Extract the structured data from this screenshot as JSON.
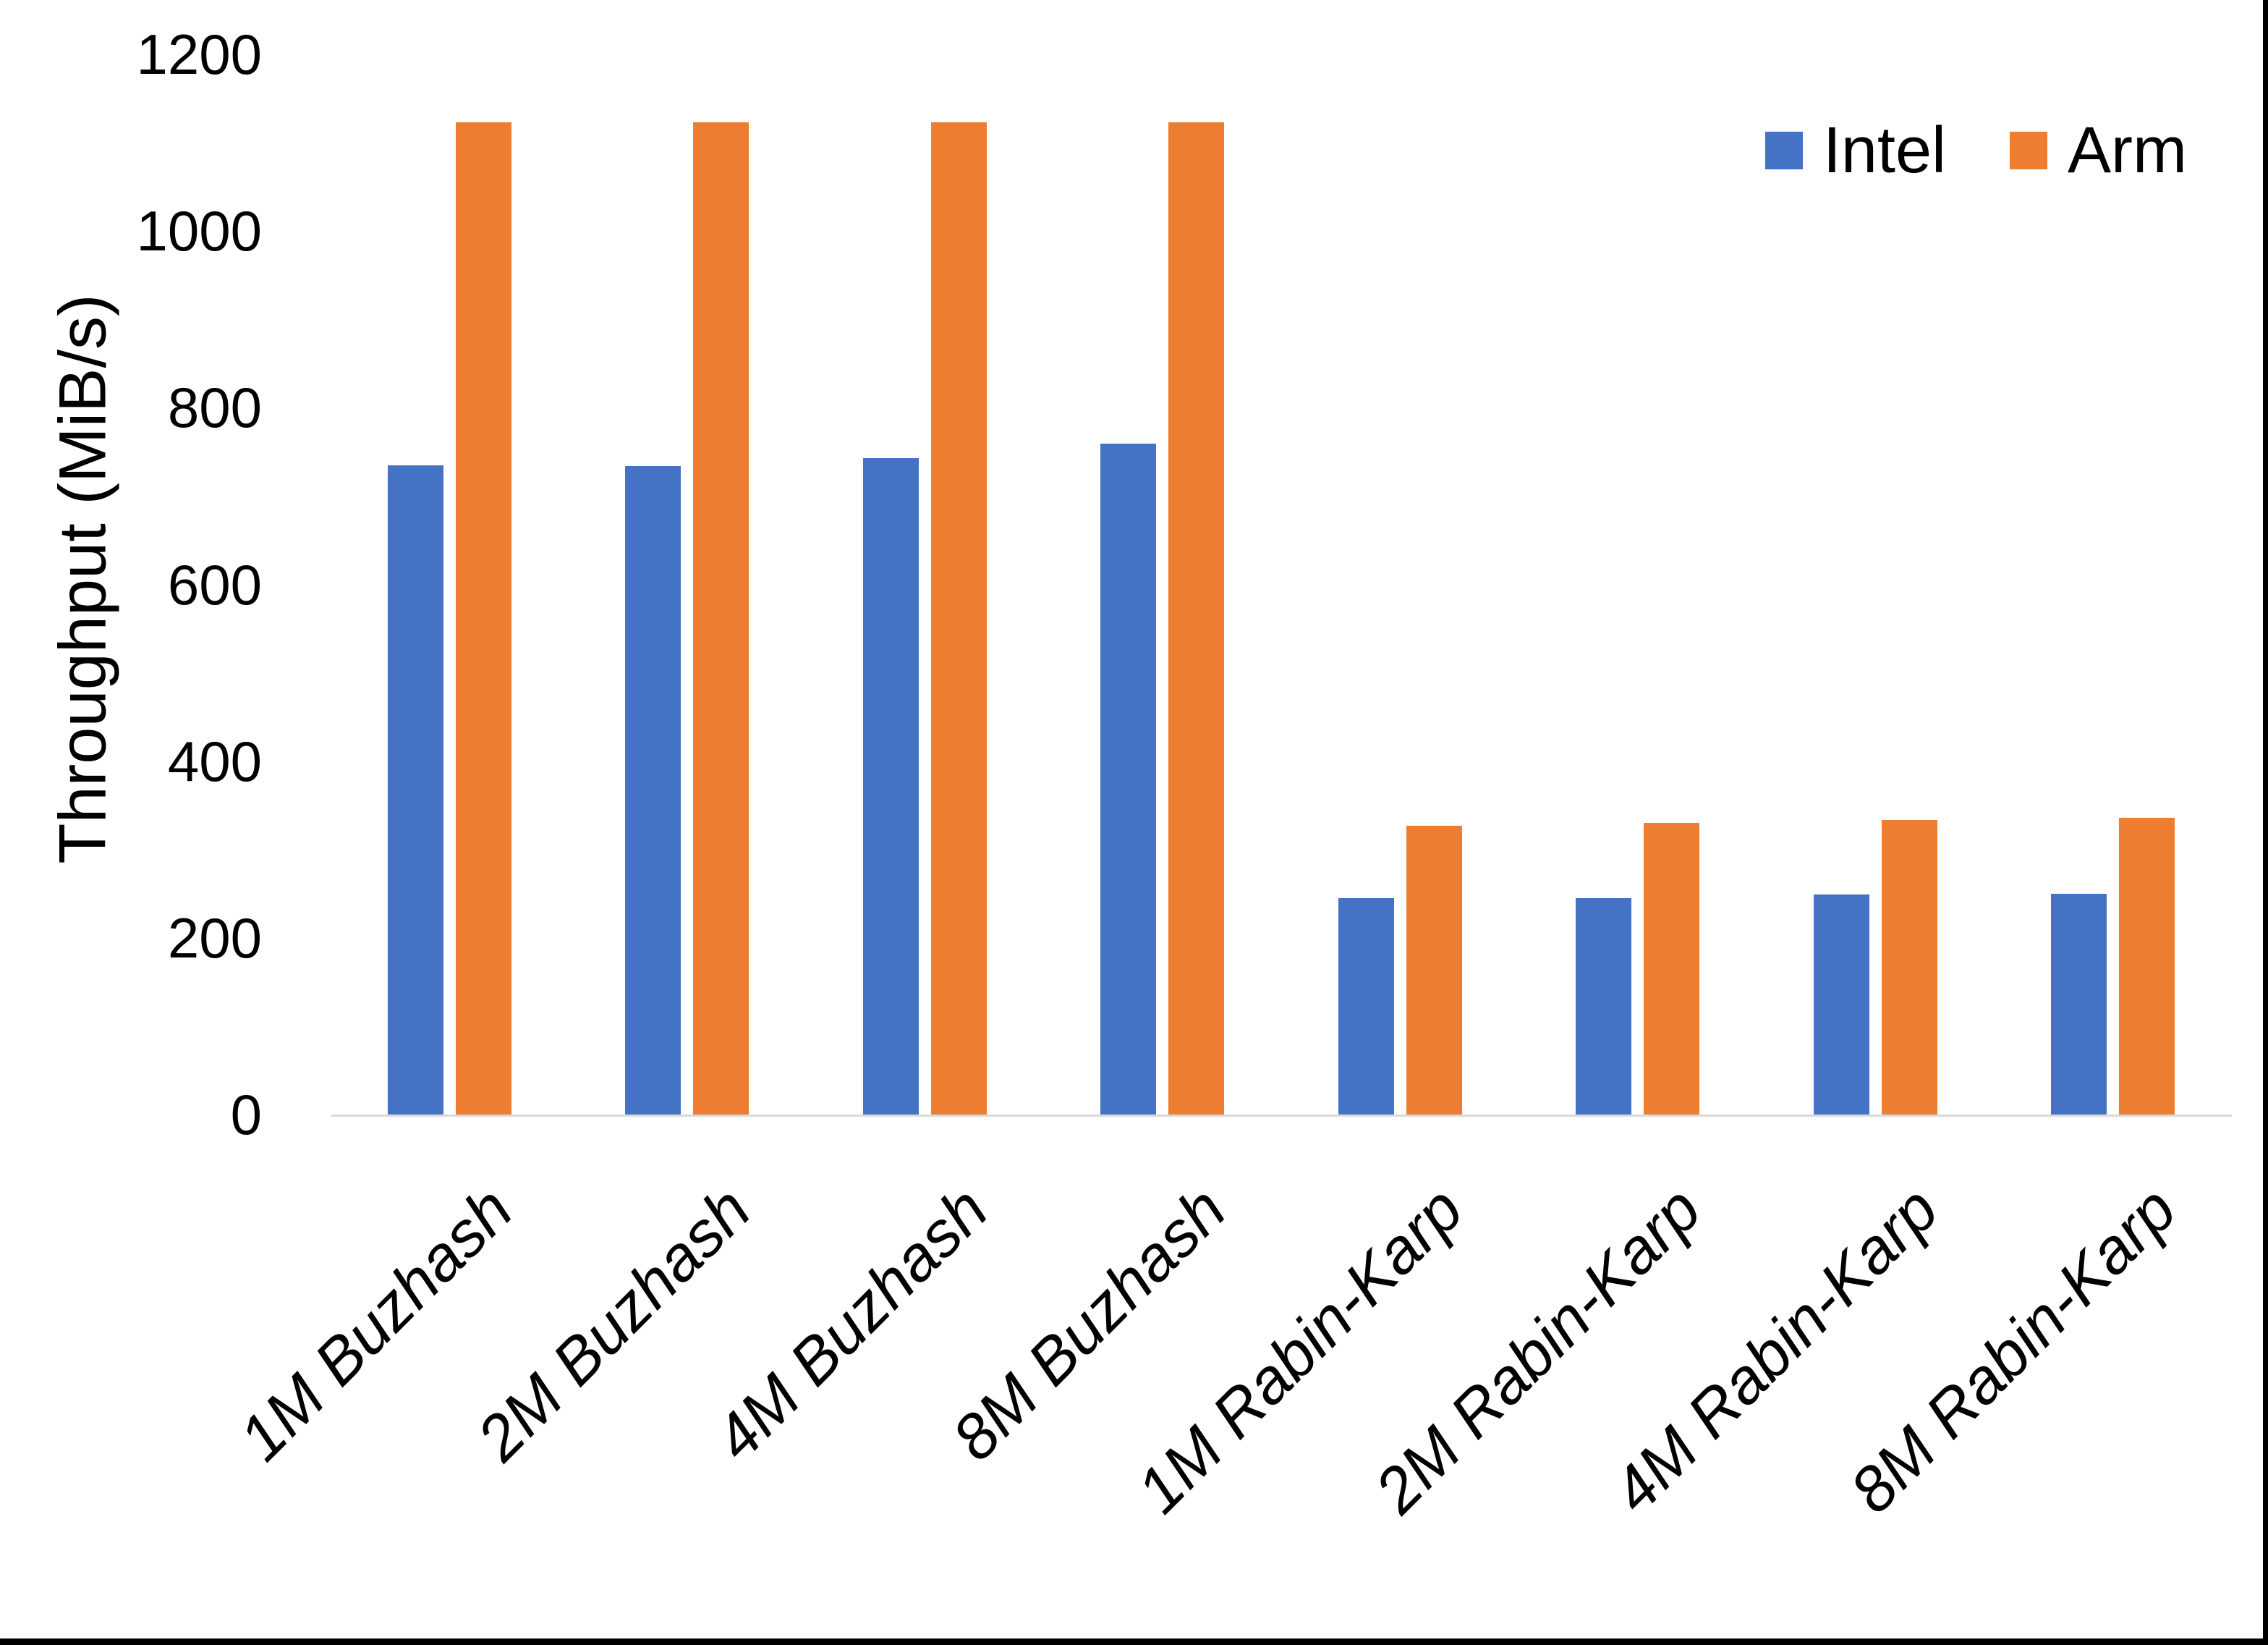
{
  "chart_data": {
    "type": "bar",
    "title": "",
    "xlabel": "",
    "ylabel": "Throughput (MiB/s)",
    "ylim": [
      0,
      1200
    ],
    "yticks": [
      0,
      200,
      400,
      600,
      800,
      1000,
      1200
    ],
    "grid": false,
    "legend_position": "top-right",
    "categories": [
      "1M Buzhash",
      "2M Buzhash",
      "4M Buzhash",
      "8M Buzhash",
      "1M Rabin-Karp",
      "2M Rabin-Karp",
      "4M Rabin-Karp",
      "8M Rabin-Karp"
    ],
    "series": [
      {
        "name": "Intel",
        "color": "#4472C4",
        "values": [
          735,
          734,
          743,
          759,
          245,
          245,
          249,
          250
        ]
      },
      {
        "name": "Arm",
        "color": "#ED7D31",
        "values": [
          1123,
          1123,
          1123,
          1123,
          327,
          330,
          333,
          336
        ]
      }
    ],
    "axis_line_color": "#D9D9D9",
    "frame_border_color": "#000000"
  }
}
